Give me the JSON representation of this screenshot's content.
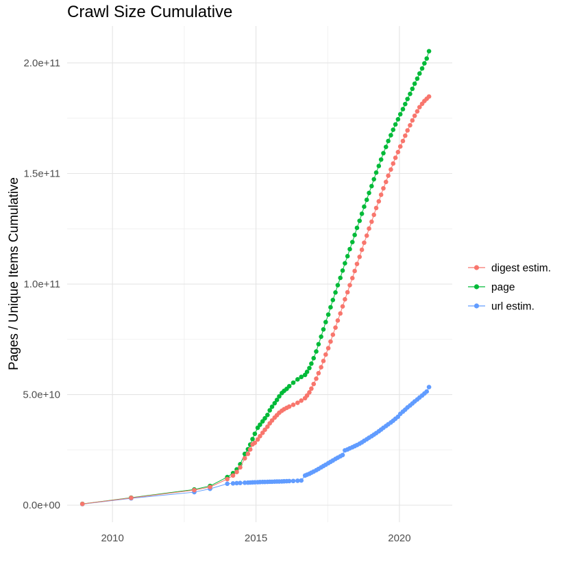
{
  "title": "Crawl Size Cumulative",
  "axes": {
    "y_label": "Pages / Unique Items Cumulative",
    "y_ticks": [
      "0.0e+00",
      "5.0e+10",
      "1.0e+11",
      "1.5e+11",
      "2.0e+11"
    ],
    "x_ticks": [
      "2010",
      "2015",
      "2020"
    ]
  },
  "legend": [
    {
      "label": "digest estim.",
      "color": "#F8766D"
    },
    {
      "label": "page",
      "color": "#00BA38"
    },
    {
      "label": "url estim.",
      "color": "#619CFF"
    }
  ],
  "colors": {
    "digest": "#F8766D",
    "page": "#00BA38",
    "url": "#619CFF",
    "grid_major": "#E4E4E4",
    "grid_minor": "#EFEFEF",
    "tick_text": "#4D4D4D",
    "background": "#FFFFFF"
  },
  "chart_data": {
    "type": "scatter",
    "title": "Crawl Size Cumulative",
    "xlabel": "",
    "ylabel": "Pages / Unique Items Cumulative",
    "unit": "1e9 (values below are billions of pages / unique items)",
    "xlim": [
      2008.42,
      2021.84
    ],
    "ylim": [
      -7.7,
      216.7
    ],
    "x_major": [
      2010,
      2015,
      2020
    ],
    "x_minor": [
      2012.5,
      2017.5
    ],
    "x_tick_labels": [
      "2010",
      "2015",
      "2020"
    ],
    "y_major": [
      0,
      50,
      100,
      150,
      200
    ],
    "y_minor": [
      25,
      75,
      125,
      175
    ],
    "y_tick_labels": [
      "0.0e+00",
      "5.0e+10",
      "1.0e+11",
      "1.5e+11",
      "2.0e+11"
    ],
    "grid": true,
    "legend_position": "right",
    "x": [
      2008.95,
      2010.65,
      2012.85,
      2013.4,
      2014.0,
      2014.2,
      2014.33,
      2014.45,
      2014.61,
      2014.72,
      2014.8,
      2014.88,
      2014.96,
      2015.06,
      2015.14,
      2015.23,
      2015.31,
      2015.4,
      2015.48,
      2015.56,
      2015.65,
      2015.73,
      2015.81,
      2015.9,
      2015.98,
      2016.07,
      2016.16,
      2016.3,
      2016.45,
      2016.58,
      2016.71,
      2016.78,
      2016.86,
      2016.93,
      2017.01,
      2017.1,
      2017.18,
      2017.27,
      2017.35,
      2017.43,
      2017.52,
      2017.6,
      2017.68,
      2017.77,
      2017.85,
      2017.94,
      2018.02,
      2018.1,
      2018.19,
      2018.27,
      2018.36,
      2018.44,
      2018.52,
      2018.61,
      2018.69,
      2018.77,
      2018.86,
      2018.94,
      2019.03,
      2019.11,
      2019.19,
      2019.28,
      2019.36,
      2019.44,
      2019.53,
      2019.61,
      2019.7,
      2019.78,
      2019.86,
      2019.95,
      2020.03,
      2020.12,
      2020.2,
      2020.28,
      2020.37,
      2020.45,
      2020.53,
      2020.62,
      2020.7,
      2020.79,
      2020.87,
      2020.95,
      2021.03
    ],
    "series": [
      {
        "name": "digest estim.",
        "color": "#F8766D",
        "values": [
          0.55,
          3.3,
          6.8,
          8.2,
          11.8,
          13.4,
          15.0,
          17.1,
          21.2,
          23.2,
          25.2,
          27.5,
          28.2,
          29.7,
          31.2,
          32.7,
          34.1,
          35.5,
          37.0,
          38.3,
          39.6,
          40.7,
          41.8,
          42.7,
          43.4,
          44.0,
          44.6,
          45.4,
          46.3,
          47.3,
          48.4,
          49.6,
          51.0,
          52.7,
          54.8,
          57.2,
          59.7,
          62.4,
          65.2,
          68.1,
          71.0,
          74.0,
          77.1,
          80.3,
          83.5,
          86.7,
          89.9,
          93.1,
          96.3,
          99.5,
          102.7,
          105.9,
          109.1,
          112.3,
          115.5,
          118.7,
          121.9,
          125.1,
          128.2,
          131.3,
          134.4,
          137.4,
          140.4,
          143.3,
          146.2,
          149.0,
          151.8,
          154.5,
          157.1,
          159.7,
          162.2,
          164.7,
          167.1,
          169.5,
          171.8,
          174.0,
          176.1,
          178.1,
          180.0,
          181.5,
          182.8,
          183.8,
          184.8
        ]
      },
      {
        "name": "page",
        "color": "#00BA38",
        "values": [
          0.6,
          3.4,
          7.1,
          8.7,
          12.7,
          14.5,
          16.2,
          18.5,
          23.2,
          25.3,
          27.4,
          29.9,
          32.3,
          35.0,
          36.4,
          37.9,
          39.3,
          40.8,
          42.9,
          44.5,
          46.1,
          47.6,
          49.2,
          50.7,
          51.7,
          52.6,
          53.8,
          55.4,
          56.9,
          58.0,
          58.9,
          60.3,
          62.0,
          64.0,
          66.5,
          69.5,
          72.8,
          76.2,
          79.5,
          82.8,
          86.2,
          89.5,
          92.8,
          96.2,
          99.5,
          102.8,
          106.1,
          109.4,
          112.6,
          115.8,
          119.0,
          122.2,
          125.4,
          128.6,
          131.8,
          135.0,
          138.1,
          141.2,
          144.3,
          147.4,
          150.4,
          153.4,
          156.3,
          159.2,
          162.0,
          164.7,
          167.3,
          169.8,
          172.2,
          174.5,
          176.8,
          179.1,
          181.4,
          183.7,
          186.0,
          188.3,
          190.6,
          192.9,
          195.2,
          197.5,
          199.8,
          202.0,
          205.3
        ]
      },
      {
        "name": "url estim.",
        "color": "#619CFF",
        "values": [
          0.5,
          3.1,
          5.9,
          7.4,
          9.7,
          9.85,
          9.95,
          10.05,
          10.15,
          10.2,
          10.25,
          10.3,
          10.35,
          10.4,
          10.45,
          10.5,
          10.5,
          10.55,
          10.6,
          10.6,
          10.65,
          10.7,
          10.7,
          10.75,
          10.8,
          10.85,
          10.9,
          10.95,
          11.05,
          11.15,
          13.4,
          13.8,
          14.2,
          14.7,
          15.2,
          15.8,
          16.4,
          17.1,
          17.7,
          18.3,
          19.0,
          19.6,
          20.2,
          20.9,
          21.5,
          22.1,
          22.7,
          24.8,
          25.2,
          25.7,
          26.2,
          26.7,
          27.2,
          27.8,
          28.4,
          29.1,
          29.8,
          30.5,
          31.2,
          31.9,
          32.6,
          33.4,
          34.2,
          35.0,
          35.8,
          36.6,
          37.4,
          38.2,
          39.1,
          40.0,
          41.3,
          42.3,
          43.2,
          44.2,
          45.1,
          46.0,
          46.9,
          47.8,
          48.7,
          49.6,
          50.5,
          51.4,
          53.4
        ]
      }
    ]
  }
}
